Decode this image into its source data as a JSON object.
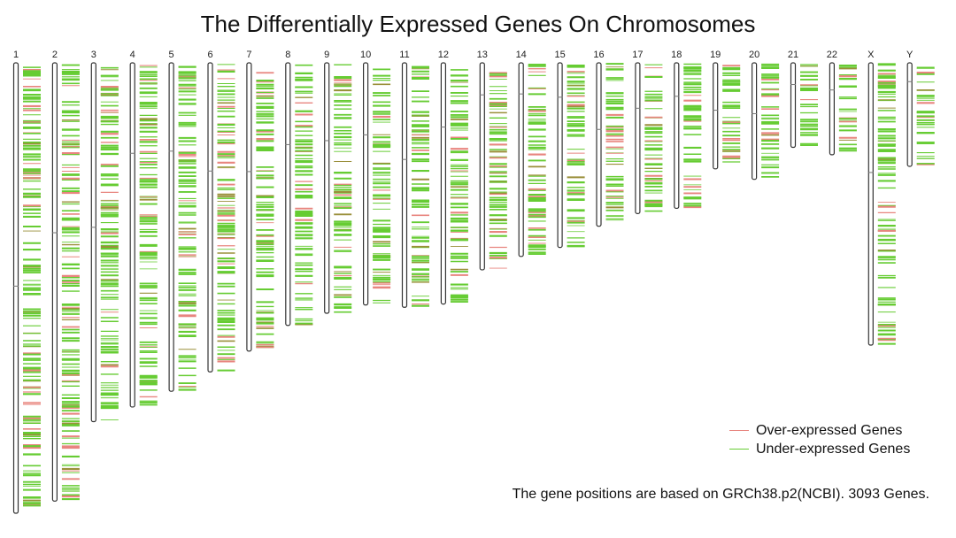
{
  "chart_data": {
    "type": "ideogram",
    "title": "The Differentially Expressed Genes On Chromosomes",
    "footnote": "The gene positions are based on GRCh38.p2(NCBI). 3093 Genes.",
    "legend": [
      {
        "label": "Over-expressed Genes",
        "color": "#e8857f"
      },
      {
        "label": "Under-expressed Genes",
        "color": "#66cc33"
      }
    ],
    "legend_placement": "bottom-right",
    "colors": {
      "over": "#e8857f",
      "under": "#66cc33",
      "mixed": "#9a8f3a",
      "outline": "#333333"
    },
    "total_genes": 3093,
    "chromosomes": [
      {
        "name": "1",
        "length_mb": 248.9,
        "centromere_mb": 123.4
      },
      {
        "name": "2",
        "length_mb": 242.2,
        "centromere_mb": 93.9
      },
      {
        "name": "3",
        "length_mb": 198.3,
        "centromere_mb": 90.9
      },
      {
        "name": "4",
        "length_mb": 190.2,
        "centromere_mb": 50.0
      },
      {
        "name": "5",
        "length_mb": 181.5,
        "centromere_mb": 48.8
      },
      {
        "name": "6",
        "length_mb": 170.8,
        "centromere_mb": 59.8
      },
      {
        "name": "7",
        "length_mb": 159.3,
        "centromere_mb": 60.1
      },
      {
        "name": "8",
        "length_mb": 145.1,
        "centromere_mb": 45.2
      },
      {
        "name": "9",
        "length_mb": 138.4,
        "centromere_mb": 43.0
      },
      {
        "name": "10",
        "length_mb": 133.8,
        "centromere_mb": 39.8
      },
      {
        "name": "11",
        "length_mb": 135.1,
        "centromere_mb": 53.4
      },
      {
        "name": "12",
        "length_mb": 133.3,
        "centromere_mb": 35.5
      },
      {
        "name": "13",
        "length_mb": 114.4,
        "centromere_mb": 17.7
      },
      {
        "name": "14",
        "length_mb": 107.0,
        "centromere_mb": 17.2
      },
      {
        "name": "15",
        "length_mb": 102.0,
        "centromere_mb": 19.0
      },
      {
        "name": "16",
        "length_mb": 90.3,
        "centromere_mb": 36.8
      },
      {
        "name": "17",
        "length_mb": 83.3,
        "centromere_mb": 25.1
      },
      {
        "name": "18",
        "length_mb": 80.4,
        "centromere_mb": 18.5
      },
      {
        "name": "19",
        "length_mb": 58.6,
        "centromere_mb": 26.2
      },
      {
        "name": "20",
        "length_mb": 64.4,
        "centromere_mb": 28.1
      },
      {
        "name": "21",
        "length_mb": 46.7,
        "centromere_mb": 12.0
      },
      {
        "name": "22",
        "length_mb": 50.8,
        "centromere_mb": 15.0
      },
      {
        "name": "X",
        "length_mb": 156.0,
        "centromere_mb": 60.6
      },
      {
        "name": "Y",
        "length_mb": 57.2,
        "centromere_mb": 10.4
      }
    ]
  }
}
